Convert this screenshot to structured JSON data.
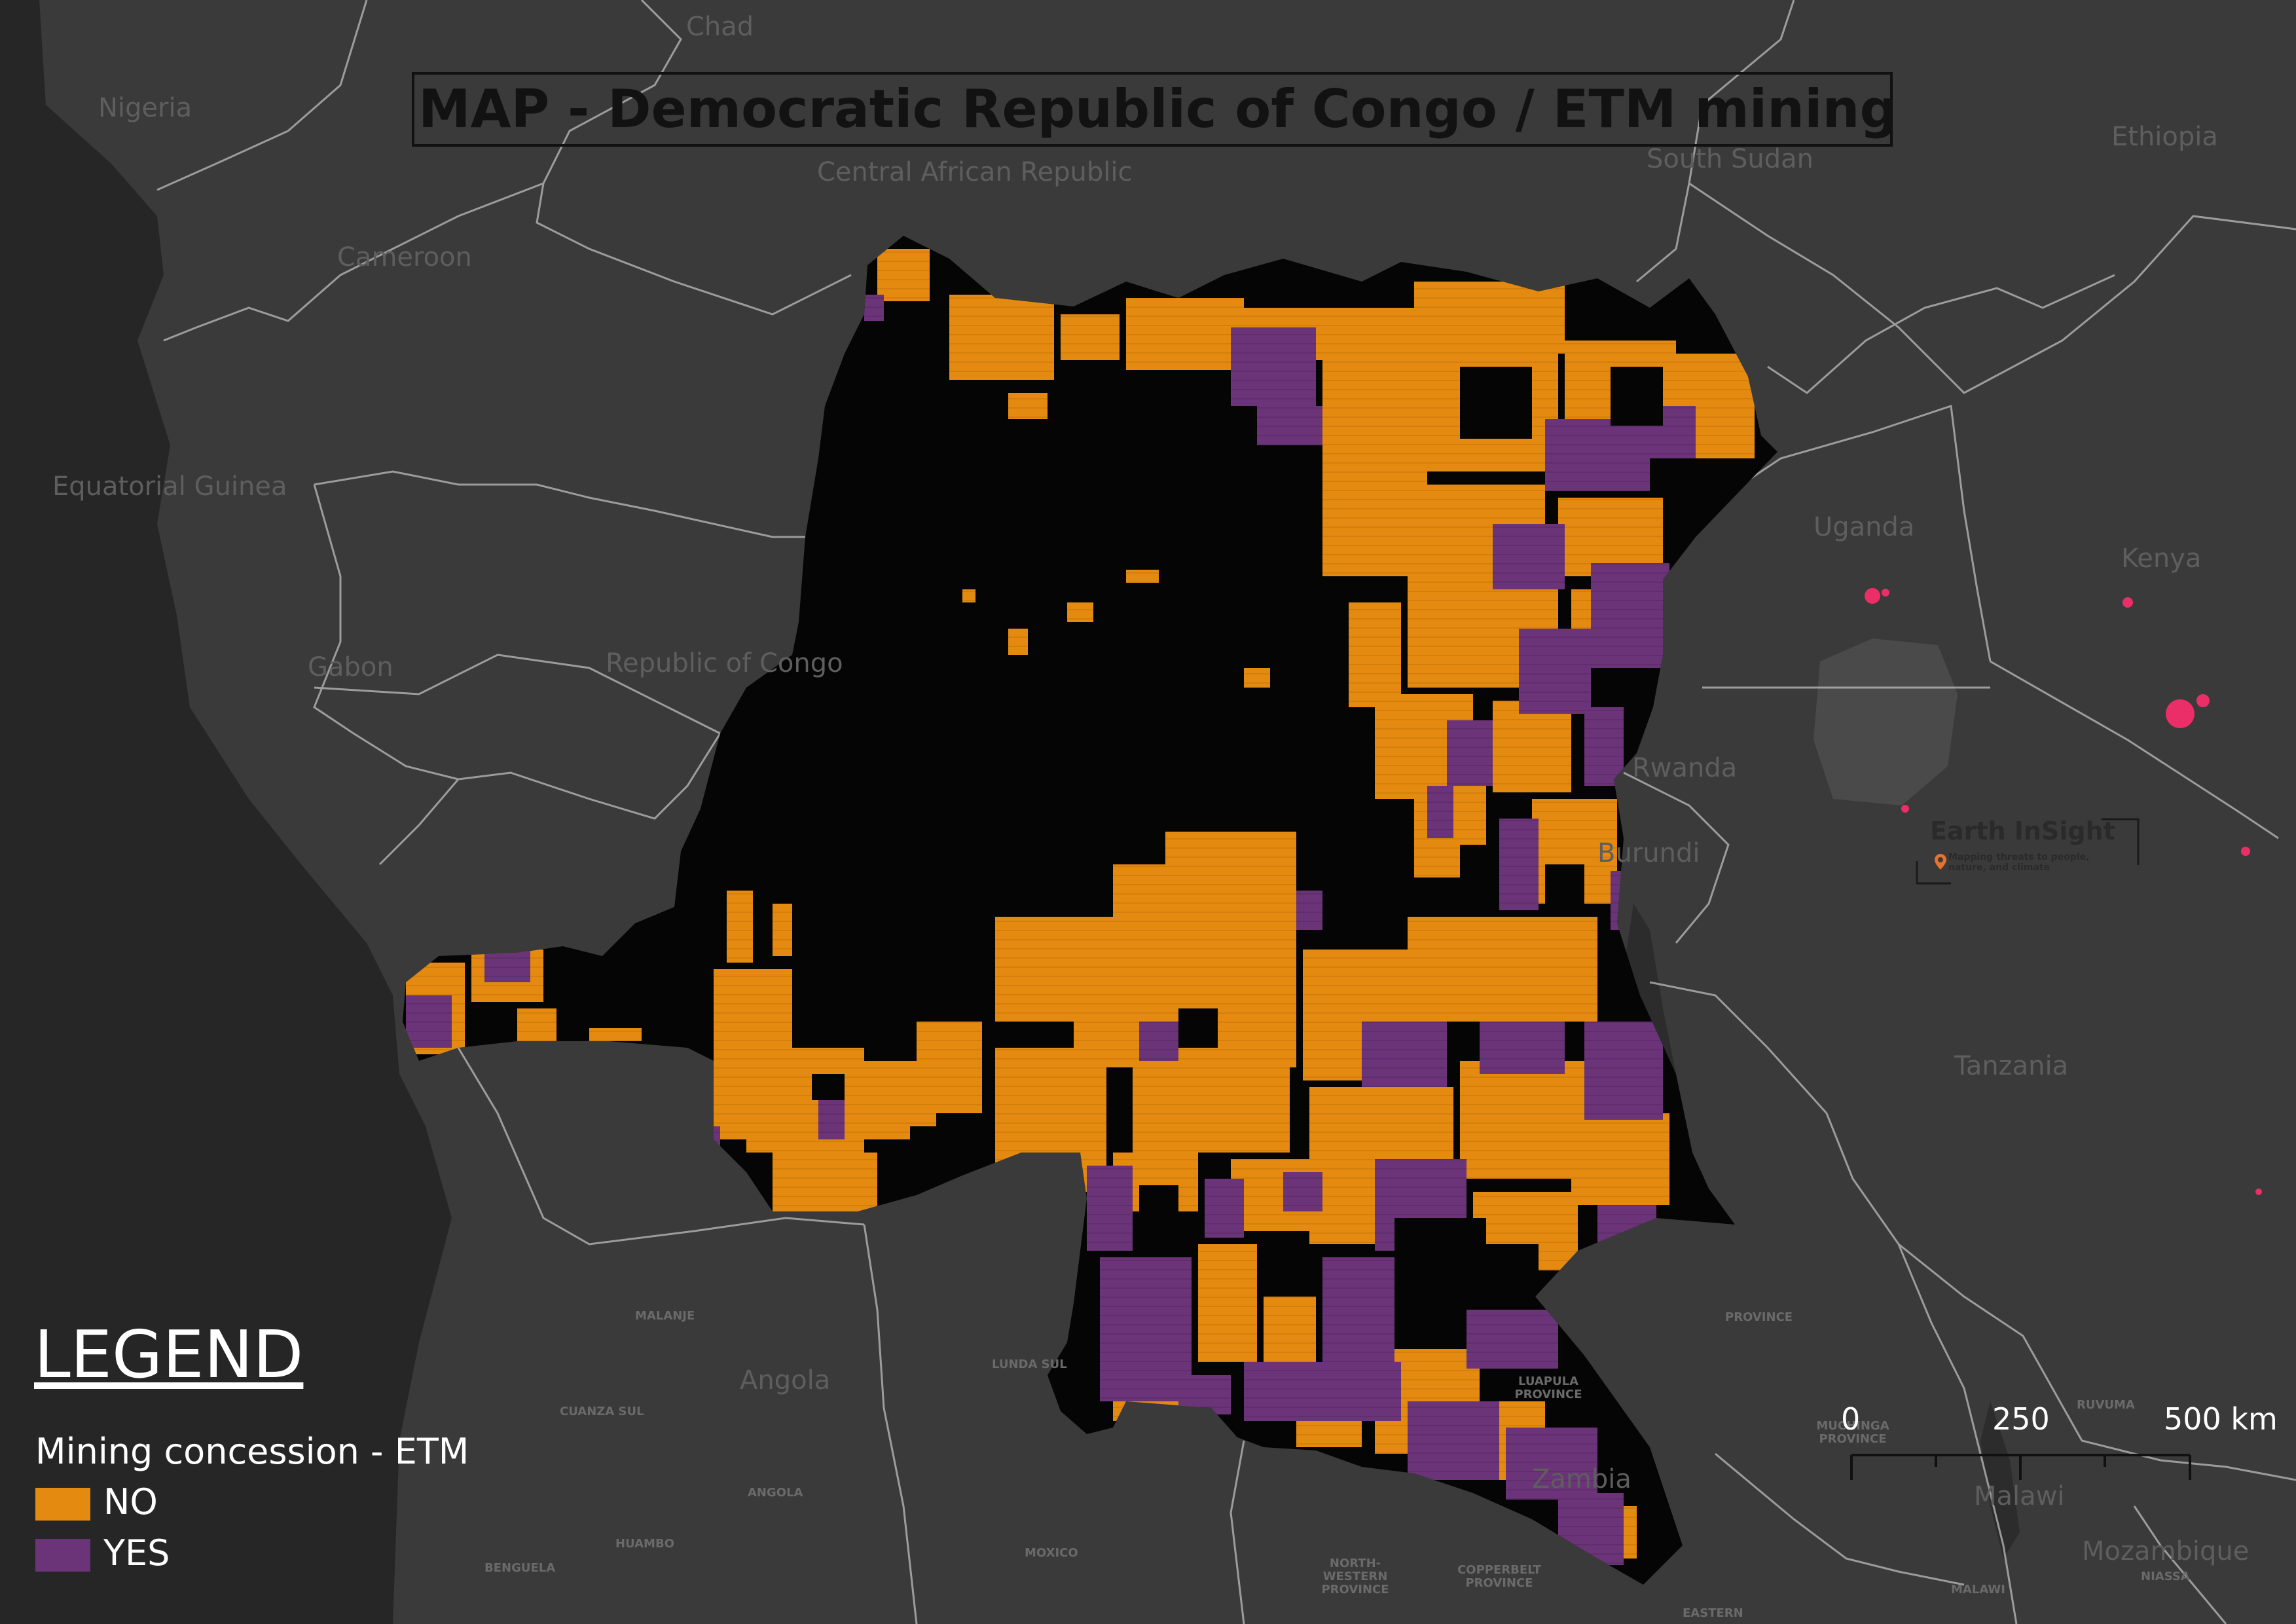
{
  "title": "MAP - Democratic Republic of Congo / ETM mining",
  "legend": {
    "heading": "LEGEND",
    "subtitle": "Mining concession - ETM",
    "items": [
      {
        "label": "NO",
        "color": "#e58a10"
      },
      {
        "label": "YES",
        "color": "#6b3478"
      }
    ]
  },
  "scale": {
    "ticks": [
      "0",
      "250",
      "500 km"
    ]
  },
  "logo": {
    "name": "Earth InSight",
    "tagline": "Mapping threats to people, nature, and climate",
    "pin_color": "#e8722a"
  },
  "country_labels": [
    "Chad",
    "Nigeria",
    "Central African Republic",
    "South Sudan",
    "Ethiopia",
    "Cameroon",
    "Equatorial Guinea",
    "Uganda",
    "Kenya",
    "Gabon",
    "Republic of Congo",
    "Rwanda",
    "Burundi",
    "Tanzania",
    "Angola",
    "Zambia",
    "Malawi",
    "Mozambique"
  ],
  "region_labels": [
    "MALANJE",
    "LUNDA SUL",
    "LUAPULA PROVINCE",
    "CUANZA SUL",
    "ANGOLA",
    "HUAMBO",
    "BENGUELA",
    "MOXICO",
    "NORTH-WESTERN PROVINCE",
    "COPPERBELT PROVINCE",
    "MUCHINGA PROVINCE",
    "RUVUMA",
    "NIASSA",
    "MALAWI",
    "PROVINCE",
    "EASTERN"
  ],
  "colors": {
    "background": "#3a3a3a",
    "ocean": "#252525",
    "borders": "#bdbdbd",
    "drc": "#050505",
    "urban": "#ff2d6e",
    "concession_no": "#e58a10",
    "concession_yes": "#6b3478"
  }
}
